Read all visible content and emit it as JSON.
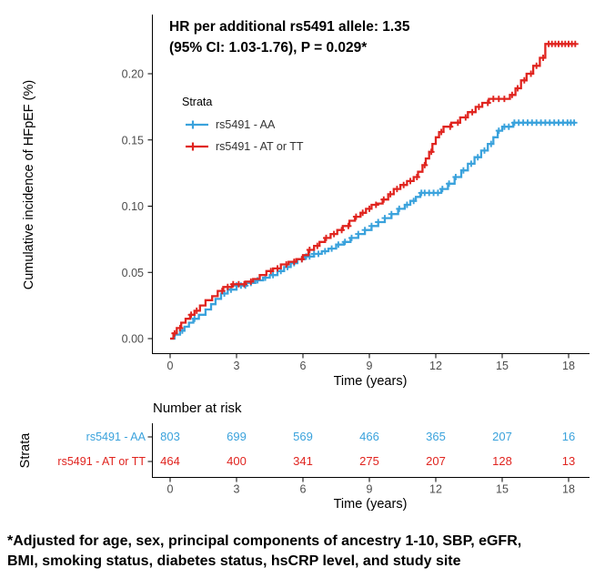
{
  "chart_data": {
    "type": "line",
    "chart_kind": "kaplan-meier-cumulative-incidence-step-curves-with-censor-marks",
    "annotation": {
      "line1": "HR per additional rs5491 allele: 1.35",
      "line2": "(95% CI: 1.03-1.76), P = 0.029*"
    },
    "xlabel": "Time (years)",
    "ylabel": "Cumulative incidence of HFpEF (%)",
    "xlim": [
      0,
      18.5
    ],
    "ylim": [
      0,
      0.23
    ],
    "xticks": [
      0,
      3,
      6,
      9,
      12,
      15,
      18
    ],
    "ytick_labels": [
      "0.00",
      "0.05",
      "0.10",
      "0.15",
      "0.20"
    ],
    "grid": "off",
    "legend": {
      "title": "Strata",
      "position": "inside-top-left",
      "entries": [
        {
          "label": "rs5491 - AA",
          "color": "#3AA2DC"
        },
        {
          "label": "rs5491 - AT or TT",
          "color": "#E0241F"
        }
      ]
    },
    "series": [
      {
        "name": "rs5491 - AA",
        "color": "#3AA2DC",
        "steps": [
          [
            0,
            0
          ],
          [
            0.2,
            0.003
          ],
          [
            0.45,
            0.006
          ],
          [
            0.65,
            0.009
          ],
          [
            0.85,
            0.012
          ],
          [
            1.05,
            0.015
          ],
          [
            1.3,
            0.018
          ],
          [
            1.6,
            0.022
          ],
          [
            1.85,
            0.026
          ],
          [
            2.05,
            0.03
          ],
          [
            2.3,
            0.034
          ],
          [
            2.6,
            0.037
          ],
          [
            3.0,
            0.04
          ],
          [
            3.45,
            0.042
          ],
          [
            3.85,
            0.044
          ],
          [
            4.2,
            0.046
          ],
          [
            4.5,
            0.048
          ],
          [
            4.85,
            0.051
          ],
          [
            5.15,
            0.054
          ],
          [
            5.45,
            0.057
          ],
          [
            5.75,
            0.06
          ],
          [
            6.1,
            0.062
          ],
          [
            6.5,
            0.064
          ],
          [
            6.85,
            0.066
          ],
          [
            7.15,
            0.068
          ],
          [
            7.5,
            0.071
          ],
          [
            7.85,
            0.073
          ],
          [
            8.15,
            0.076
          ],
          [
            8.5,
            0.079
          ],
          [
            8.8,
            0.082
          ],
          [
            9.1,
            0.085
          ],
          [
            9.4,
            0.088
          ],
          [
            9.7,
            0.091
          ],
          [
            10.0,
            0.094
          ],
          [
            10.3,
            0.098
          ],
          [
            10.6,
            0.101
          ],
          [
            10.85,
            0.104
          ],
          [
            11.1,
            0.107
          ],
          [
            11.3,
            0.11
          ],
          [
            12.25,
            0.113
          ],
          [
            12.55,
            0.117
          ],
          [
            12.85,
            0.122
          ],
          [
            13.15,
            0.127
          ],
          [
            13.45,
            0.132
          ],
          [
            13.75,
            0.137
          ],
          [
            14.05,
            0.142
          ],
          [
            14.35,
            0.147
          ],
          [
            14.6,
            0.152
          ],
          [
            14.8,
            0.157
          ],
          [
            15.0,
            0.16
          ],
          [
            15.5,
            0.163
          ],
          [
            18.3,
            0.163
          ]
        ],
        "censor_times": [
          0.55,
          1.1,
          2.45,
          2.75,
          3.0,
          3.2,
          3.4,
          3.65,
          3.95,
          4.3,
          4.65,
          5.0,
          5.3,
          5.6,
          5.95,
          6.15,
          6.3,
          6.5,
          6.7,
          7.0,
          7.3,
          7.6,
          7.9,
          8.2,
          8.5,
          8.8,
          9.1,
          9.4,
          9.7,
          10.0,
          10.35,
          10.7,
          11.0,
          11.35,
          11.5,
          11.7,
          11.9,
          12.1,
          12.3,
          12.6,
          12.9,
          13.25,
          13.6,
          13.9,
          14.2,
          14.5,
          14.85,
          15.1,
          15.3,
          15.55,
          15.75,
          15.95,
          16.15,
          16.35,
          16.55,
          16.75,
          16.95,
          17.15,
          17.35,
          17.55,
          17.75,
          17.95,
          18.1,
          18.25
        ]
      },
      {
        "name": "rs5491 - AT or TT",
        "color": "#E0241F",
        "steps": [
          [
            0,
            0
          ],
          [
            0.15,
            0.004
          ],
          [
            0.3,
            0.008
          ],
          [
            0.5,
            0.012
          ],
          [
            0.7,
            0.015
          ],
          [
            0.9,
            0.018
          ],
          [
            1.1,
            0.021
          ],
          [
            1.35,
            0.025
          ],
          [
            1.6,
            0.029
          ],
          [
            1.9,
            0.032
          ],
          [
            2.15,
            0.036
          ],
          [
            2.4,
            0.039
          ],
          [
            2.8,
            0.041
          ],
          [
            3.4,
            0.043
          ],
          [
            3.75,
            0.045
          ],
          [
            4.05,
            0.048
          ],
          [
            4.35,
            0.051
          ],
          [
            4.65,
            0.053
          ],
          [
            5.0,
            0.056
          ],
          [
            5.35,
            0.058
          ],
          [
            5.7,
            0.06
          ],
          [
            6.0,
            0.063
          ],
          [
            6.25,
            0.067
          ],
          [
            6.5,
            0.07
          ],
          [
            6.75,
            0.073
          ],
          [
            7.0,
            0.076
          ],
          [
            7.25,
            0.079
          ],
          [
            7.55,
            0.082
          ],
          [
            7.8,
            0.085
          ],
          [
            8.1,
            0.089
          ],
          [
            8.35,
            0.092
          ],
          [
            8.6,
            0.095
          ],
          [
            8.85,
            0.098
          ],
          [
            9.1,
            0.101
          ],
          [
            9.35,
            0.102
          ],
          [
            9.6,
            0.105
          ],
          [
            9.85,
            0.109
          ],
          [
            10.1,
            0.113
          ],
          [
            10.4,
            0.116
          ],
          [
            10.7,
            0.119
          ],
          [
            11.0,
            0.122
          ],
          [
            11.2,
            0.126
          ],
          [
            11.4,
            0.131
          ],
          [
            11.55,
            0.136
          ],
          [
            11.7,
            0.141
          ],
          [
            11.85,
            0.147
          ],
          [
            12.0,
            0.152
          ],
          [
            12.15,
            0.156
          ],
          [
            12.35,
            0.16
          ],
          [
            12.7,
            0.163
          ],
          [
            13.1,
            0.167
          ],
          [
            13.45,
            0.171
          ],
          [
            13.8,
            0.175
          ],
          [
            14.1,
            0.178
          ],
          [
            14.4,
            0.181
          ],
          [
            15.35,
            0.184
          ],
          [
            15.6,
            0.189
          ],
          [
            15.85,
            0.195
          ],
          [
            16.1,
            0.2
          ],
          [
            16.4,
            0.206
          ],
          [
            16.7,
            0.212
          ],
          [
            16.95,
            0.2225
          ],
          [
            18.35,
            0.2225
          ]
        ],
        "censor_times": [
          0.2,
          0.45,
          0.95,
          1.2,
          2.35,
          2.6,
          2.85,
          3.1,
          3.35,
          3.65,
          4.55,
          4.85,
          5.25,
          5.6,
          5.95,
          6.3,
          6.65,
          7.05,
          7.4,
          7.75,
          8.05,
          8.4,
          8.7,
          9.0,
          9.3,
          9.65,
          9.95,
          10.25,
          10.55,
          10.85,
          11.15,
          11.5,
          11.8,
          12.25,
          12.65,
          13.0,
          13.35,
          13.65,
          13.95,
          14.35,
          14.6,
          14.85,
          15.1,
          15.45,
          15.7,
          16.0,
          16.3,
          16.55,
          16.85,
          17.1,
          17.25,
          17.4,
          17.55,
          17.7,
          17.85,
          18.0,
          18.15,
          18.3
        ]
      }
    ],
    "risk_table": {
      "title": "Number at risk",
      "axis_label": "Strata",
      "xlabel": "Time (years)",
      "times": [
        0,
        3,
        6,
        9,
        12,
        15,
        18
      ],
      "rows": [
        {
          "label": "rs5491 - AA",
          "color": "#3AA2DC",
          "counts": [
            803,
            699,
            569,
            466,
            365,
            207,
            16
          ]
        },
        {
          "label": "rs5491 - AT or TT",
          "color": "#E0241F",
          "counts": [
            464,
            400,
            341,
            275,
            207,
            128,
            13
          ]
        }
      ]
    }
  },
  "footnote": {
    "line1": "*Adjusted for age, sex, principal components of ancestry 1-10, SBP, eGFR,",
    "line2": "BMI, smoking status, diabetes status, hsCRP level, and study site"
  }
}
